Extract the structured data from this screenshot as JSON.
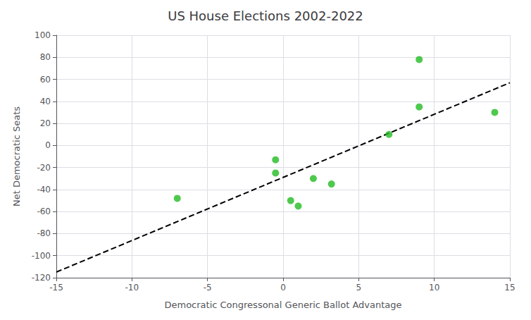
{
  "chart_data": {
    "type": "scatter",
    "title": "US House Elections 2002-2022",
    "xlabel": "Democratic Congressonal Generic Ballot Advantage",
    "ylabel": "Net Democratic Seats",
    "xlim": [
      -15,
      15
    ],
    "ylim": [
      -120,
      100
    ],
    "xticks": [
      -15,
      -10,
      -5,
      0,
      5,
      10,
      15
    ],
    "yticks": [
      -120,
      -100,
      -80,
      -60,
      -40,
      -20,
      0,
      20,
      40,
      60,
      80,
      100
    ],
    "grid": true,
    "series": [
      {
        "type": "scatter",
        "color": "#22bb22",
        "x": [
          -7.0,
          -0.5,
          -0.5,
          0.5,
          1.0,
          2.0,
          3.2,
          7.0,
          9.0,
          9.0,
          14.0
        ],
        "values": [
          -48,
          -13,
          -25,
          -50,
          -55,
          -30,
          -35,
          10,
          78,
          35,
          30
        ]
      },
      {
        "type": "line",
        "color": "black",
        "line_style": "dashed",
        "x": [
          -15,
          15
        ],
        "values": [
          -114.8911,
          56.9099
        ]
      }
    ]
  }
}
